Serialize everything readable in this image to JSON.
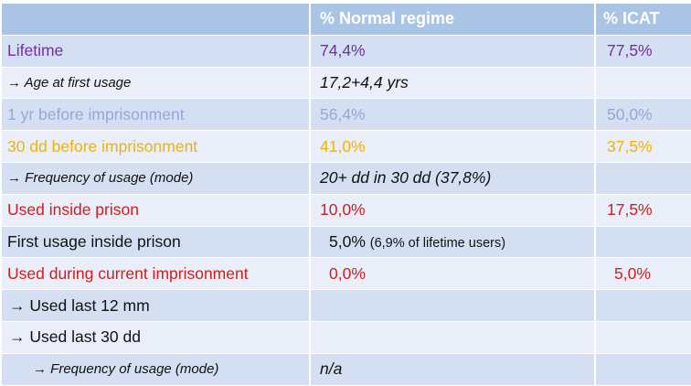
{
  "header": {
    "col1": "",
    "col2": "% Normal regime",
    "col3": "% ICAT"
  },
  "rows": [
    {
      "label": "Lifetime",
      "normal": "74,4%",
      "icat": "77,5%",
      "color": "#7030a0"
    },
    {
      "label": "→ Age at first usage",
      "normal": "17,2+4,4 yrs",
      "icat": "",
      "color": "#111111"
    },
    {
      "label": "1 yr before imprisonment",
      "normal": "56,4%",
      "icat": "50,0%",
      "color": "#9da3d9"
    },
    {
      "label": "30 dd before imprisonment",
      "normal": "41,0%",
      "icat": "37,5%",
      "color": "#f0b400"
    },
    {
      "label": "→ Frequency of usage (mode)",
      "normal": "20+ dd in 30 dd (37,8%)",
      "icat": "",
      "color": "#111111"
    },
    {
      "label": "Used inside prison",
      "normal": "10,0%",
      "icat": "17,5%",
      "color": "#cc1f1f"
    },
    {
      "label": "First usage inside prison",
      "normal": "5,0%",
      "normal_note": "(6,9% of lifetime users)",
      "icat": "",
      "color": "#111111"
    },
    {
      "label": "Used during current imprisonment",
      "normal": "0,0%",
      "icat": "5,0%",
      "color": "#cc1f1f"
    },
    {
      "label": "→ Used last 12 mm",
      "normal": "",
      "icat": "",
      "color": "#111111"
    },
    {
      "label": "→ Used last 30 dd",
      "normal": "",
      "icat": "",
      "color": "#111111"
    },
    {
      "label": "→ Frequency of usage (mode)",
      "normal": "n/a",
      "icat": "",
      "color": "#111111"
    }
  ]
}
